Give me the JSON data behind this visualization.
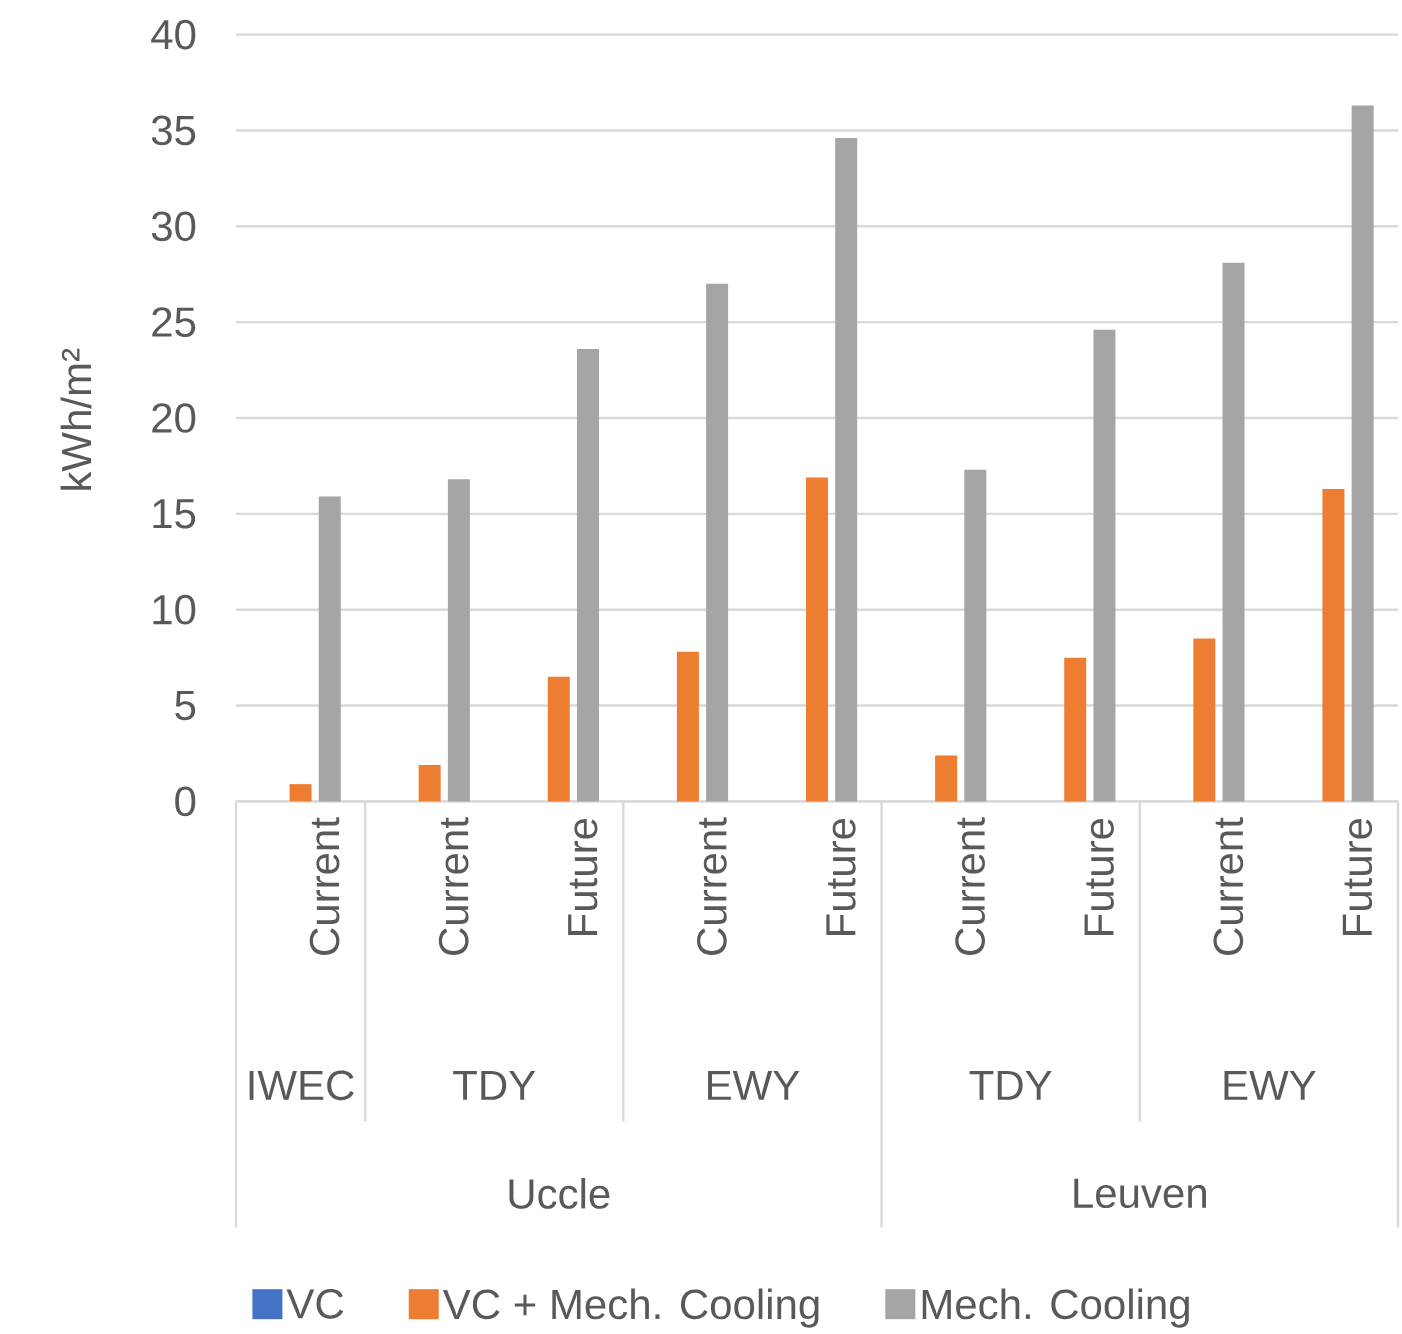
{
  "chart_data": {
    "type": "bar",
    "ylabel": "kWh/m²",
    "categories": [
      "Current",
      "Current",
      "Future",
      "Current",
      "Future",
      "Current",
      "Future",
      "Current",
      "Future"
    ],
    "annotations": [
      "IWEC",
      "TDY",
      "EWY",
      "TDY",
      "EWY",
      "Uccle",
      "Leuven"
    ],
    "series": [
      {
        "name": "VC",
        "color": "#4472c4",
        "values": [
          0,
          0,
          0,
          0,
          0,
          0,
          0,
          0,
          0
        ]
      },
      {
        "name": "VC + Mech. Cooling",
        "color": "#ed7d31",
        "values": [
          0.9,
          1.9,
          6.5,
          7.8,
          16.9,
          2.4,
          7.5,
          8.5,
          16.3
        ]
      },
      {
        "name": "Mech. Cooling",
        "color": "#a5a5a5",
        "values": [
          15.9,
          16.8,
          23.6,
          27.0,
          34.6,
          17.3,
          24.6,
          28.1,
          36.3
        ]
      }
    ],
    "ylim": [
      0,
      40
    ],
    "yticks": [
      0,
      5,
      10,
      15,
      20,
      25,
      30,
      35,
      40
    ],
    "grid": "y",
    "legend": "bottom"
  }
}
